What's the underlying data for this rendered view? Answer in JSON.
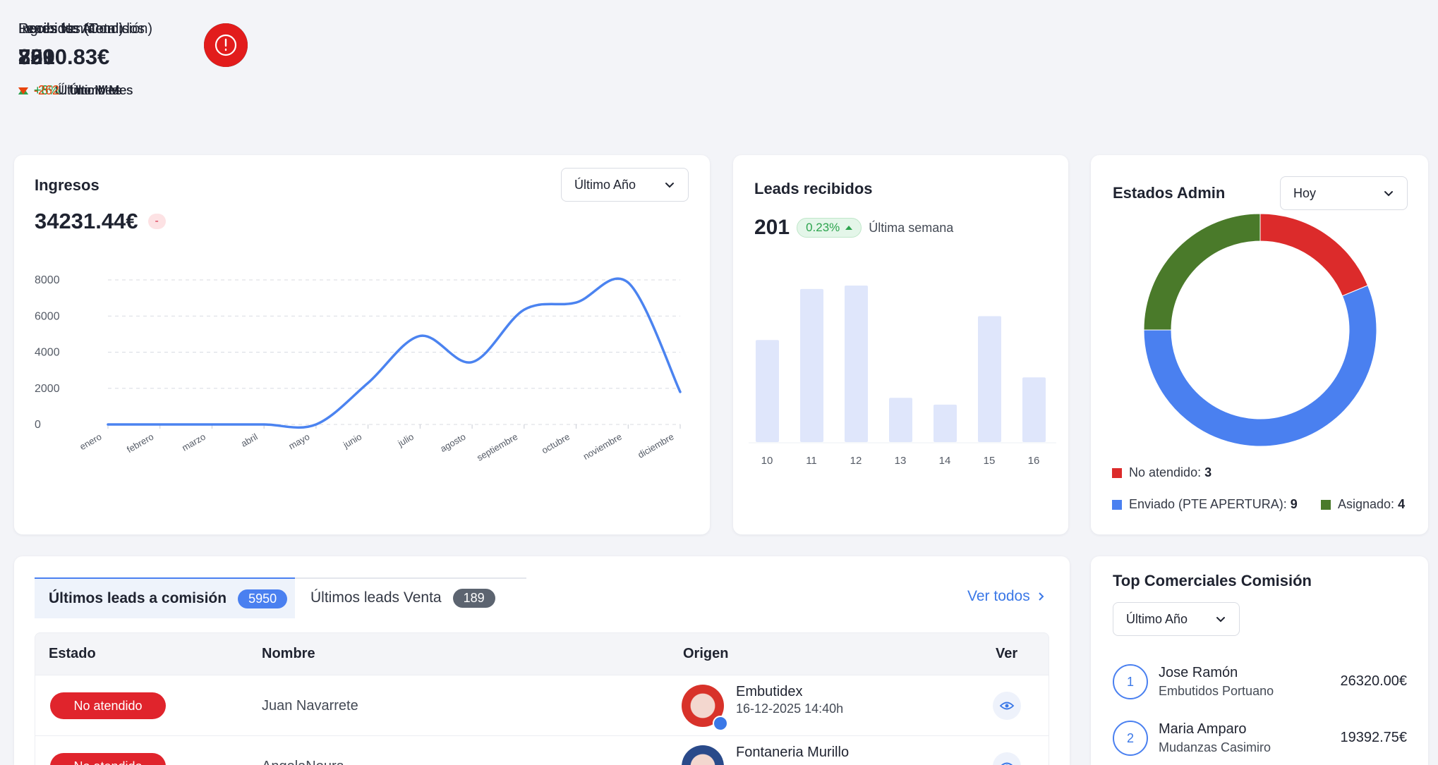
{
  "kpis": [
    {
      "title": "Recibidos (Total)",
      "value": 800,
      "delta": "+3",
      "period": "Último Mes",
      "trend": "up",
      "color": "#12b4e8"
    },
    {
      "title": "Leads venta",
      "value": 33,
      "delta": "-2",
      "period": "Último Mes",
      "trend": "down",
      "color": "#8b4ee8"
    },
    {
      "title": "Recibidos (Comisión)",
      "value": 759,
      "delta": "+6",
      "period": "Último Mes",
      "trend": "up",
      "color": "#14c3e6"
    },
    {
      "title": "Ingresos",
      "value": "7390.83€",
      "delta": "+6%",
      "period": "Último Mes",
      "trend": "up",
      "color": "#30a85b"
    },
    {
      "title": "Leads No Atendidos",
      "value": 221,
      "delta": "-262",
      "period": "Último Mes",
      "trend": "down",
      "color": "#e21c1c"
    }
  ],
  "chart_data": [
    {
      "type": "line",
      "title": "Ingresos",
      "total": "34231.44€",
      "badge": "-",
      "dropdown": "Último Año",
      "categories": [
        "enero",
        "febrero",
        "marzo",
        "abril",
        "mayo",
        "junio",
        "julio",
        "agosto",
        "septiembre",
        "octubre",
        "noviembre",
        "diciembre"
      ],
      "values": [
        0,
        0,
        0,
        0,
        0,
        2300,
        4900,
        3450,
        6350,
        6750,
        7850,
        1800
      ],
      "color": "#4b83f0",
      "ylim": [
        0,
        8000
      ],
      "yticks": [
        0,
        2000,
        4000,
        6000,
        8000
      ],
      "grid": true
    },
    {
      "type": "bar",
      "title": "Leads recibidos",
      "total": 201,
      "badge": "0.23%",
      "period": "Última semana",
      "categories": [
        "10",
        "11",
        "12",
        "13",
        "14",
        "15",
        "16"
      ],
      "values": [
        30,
        45,
        46,
        13,
        11,
        37,
        19
      ],
      "color": "#dfe6fb",
      "ylim": [
        0,
        46
      ]
    },
    {
      "type": "pie",
      "title": "Estados Admin",
      "dropdown": "Hoy",
      "categories": [
        "No atendido:",
        "Enviado (PTE APERTURA):",
        "Asignado:"
      ],
      "values": [
        3,
        9,
        4
      ],
      "colors": [
        "#dc2b2b",
        "#4a80f0",
        "#4a7a2a"
      ]
    }
  ],
  "table": {
    "tabs": [
      {
        "label": "Últimos leads a comisión",
        "count": 5950
      },
      {
        "label": "Últimos leads Venta",
        "count": 189
      }
    ],
    "view_all": "Ver todos",
    "columns": [
      "Estado",
      "Nombre",
      "Origen",
      "Ver"
    ],
    "rows": [
      {
        "status": "No atendido",
        "name": "Juan Navarrete",
        "origin": "Embutidex",
        "date": "16-12-2025 14:40h"
      },
      {
        "status": "No atendido",
        "name": "AngelaNoura",
        "origin": "Fontaneria Murillo"
      }
    ]
  },
  "top": {
    "title": "Top Comerciales Comisión",
    "dropdown": "Último Año",
    "items": [
      {
        "rank": 1,
        "name": "Jose Ramón",
        "company": "Embutidos Portuano",
        "amount": "26320.00€"
      },
      {
        "rank": 2,
        "name": "Maria Amparo",
        "company": "Mudanzas Casimiro",
        "amount": "19392.75€"
      }
    ]
  }
}
